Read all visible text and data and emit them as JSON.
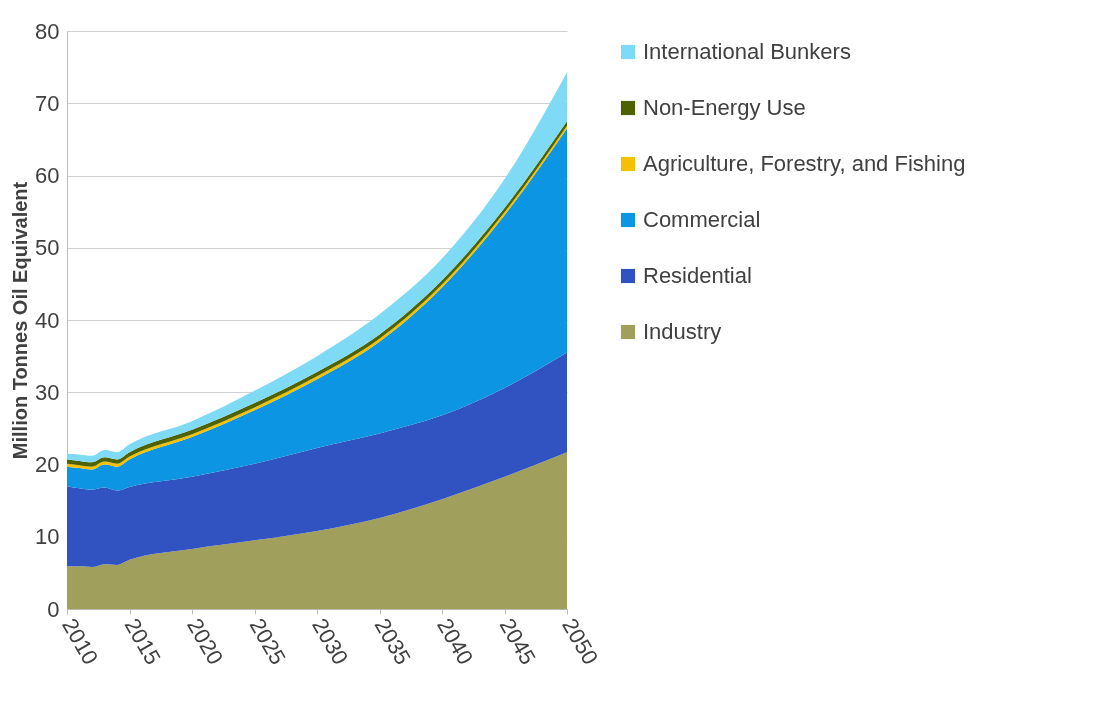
{
  "chart_data": {
    "type": "area",
    "stacked": true,
    "ylabel": "Million Tonnes Oil Equivalent",
    "x": [
      2010,
      2011,
      2012,
      2013,
      2014,
      2015,
      2020,
      2025,
      2030,
      2035,
      2040,
      2045,
      2050
    ],
    "xlim": [
      2010,
      2050
    ],
    "xticks": [
      2010,
      2015,
      2020,
      2025,
      2030,
      2035,
      2040,
      2045,
      2050
    ],
    "ylim": [
      0,
      80
    ],
    "yticks": [
      0,
      10,
      20,
      30,
      40,
      50,
      60,
      70,
      80
    ],
    "grid": "y",
    "legend": "right",
    "series": [
      {
        "name": "Industry",
        "color": "#a0a05c",
        "values": [
          5.9,
          5.9,
          5.8,
          6.2,
          6.1,
          6.8,
          8.3,
          9.5,
          10.8,
          12.6,
          15.2,
          18.3,
          21.7
        ]
      },
      {
        "name": "Residential",
        "color": "#3153c2",
        "values": [
          11.1,
          10.8,
          10.7,
          10.6,
          10.3,
          10.1,
          10.0,
          10.6,
          11.5,
          11.7,
          11.6,
          12.3,
          13.8
        ]
      },
      {
        "name": "Commercial",
        "color": "#0c95e2",
        "values": [
          2.7,
          2.8,
          2.8,
          3.2,
          3.3,
          3.8,
          5.5,
          7.4,
          9.5,
          12.7,
          17.7,
          23.9,
          31.0
        ]
      },
      {
        "name": "Agriculture, Forestry, and Fishing",
        "color": "#f5c000",
        "values": [
          0.4,
          0.4,
          0.4,
          0.4,
          0.4,
          0.4,
          0.4,
          0.4,
          0.4,
          0.4,
          0.4,
          0.4,
          0.4
        ]
      },
      {
        "name": "Non-Energy Use",
        "color": "#4f6200",
        "values": [
          0.6,
          0.6,
          0.6,
          0.6,
          0.6,
          0.6,
          0.6,
          0.6,
          0.6,
          0.6,
          0.6,
          0.6,
          0.6
        ]
      },
      {
        "name": "International Bunkers",
        "color": "#7fdaf5",
        "values": [
          0.8,
          0.9,
          0.9,
          1.0,
          1.0,
          1.1,
          1.2,
          1.7,
          2.2,
          2.8,
          3.0,
          4.0,
          6.8
        ]
      }
    ]
  }
}
